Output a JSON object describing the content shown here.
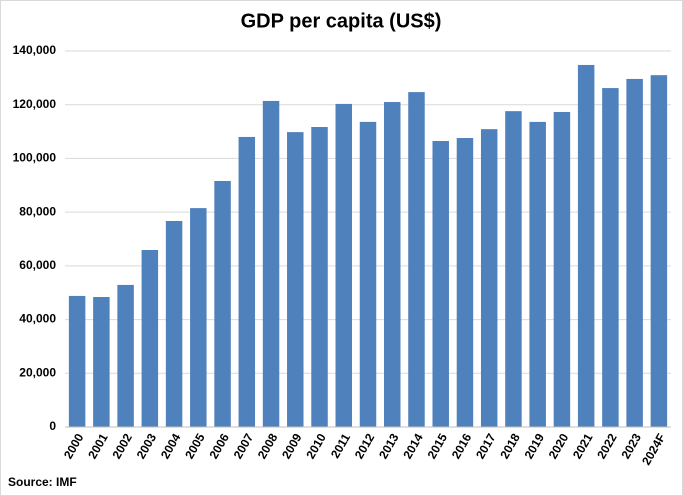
{
  "chart_data": {
    "type": "bar",
    "title": "GDP per capita (US$)",
    "source": "Source: IMF",
    "categories": [
      "2000",
      "2001",
      "2002",
      "2003",
      "2004",
      "2005",
      "2006",
      "2007",
      "2008",
      "2009",
      "2010",
      "2011",
      "2012",
      "2013",
      "2014",
      "2015",
      "2016",
      "2017",
      "2018",
      "2019",
      "2020",
      "2021",
      "2022",
      "2023",
      "2024F"
    ],
    "values": [
      48800,
      48400,
      52900,
      65900,
      76700,
      81500,
      91600,
      108000,
      121400,
      109800,
      111700,
      120300,
      113600,
      121000,
      124700,
      106500,
      107600,
      110900,
      117600,
      113600,
      117300,
      134800,
      126200,
      129600,
      131000
    ],
    "color": "#4f81bd",
    "ylim": [
      0,
      140000
    ],
    "yticks": [
      0,
      {
        "value": 20000,
        "label": "20,000"
      },
      {
        "value": 40000,
        "label": "40,000"
      },
      {
        "value": 60000,
        "label": "60,000"
      },
      {
        "value": 80000,
        "label": "80,000"
      },
      {
        "value": 100000,
        "label": "100,000"
      },
      {
        "value": 120000,
        "label": "120,000"
      },
      {
        "value": 140000,
        "label": "140,000"
      }
    ],
    "grid": true
  }
}
